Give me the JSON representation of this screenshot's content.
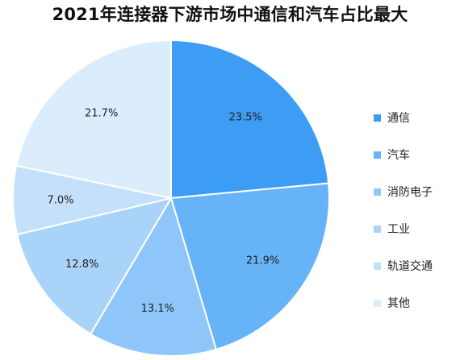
{
  "chart_data": {
    "type": "pie",
    "title": "2021年连接器下游市场中通信和汽车占比最大",
    "categories": [
      "通信",
      "汽车",
      "消防电子",
      "工业",
      "轨道交通",
      "其他"
    ],
    "values": [
      23.5,
      21.9,
      13.1,
      12.8,
      7.0,
      21.7
    ],
    "labels": [
      "23.5%",
      "21.9%",
      "13.1%",
      "12.8%",
      "7.0%",
      "21.7%"
    ],
    "colors": [
      "#3d9df5",
      "#66b3f7",
      "#8fc6f9",
      "#aad3fa",
      "#c4e0fb",
      "#dbecfc"
    ],
    "legend_position": "right"
  }
}
